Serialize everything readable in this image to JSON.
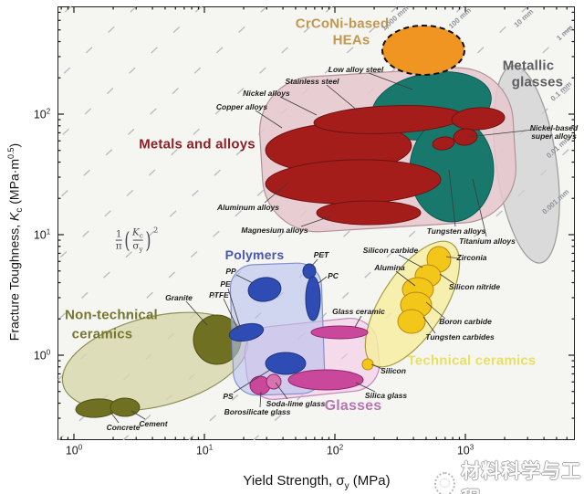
{
  "axes": {
    "x": {
      "title_pre": "Yield Strength, σ",
      "title_sub": "y",
      "title_post": " (MPa)",
      "ticks": [
        {
          "base": "10",
          "exp": "0"
        },
        {
          "base": "10",
          "exp": "1"
        },
        {
          "base": "10",
          "exp": "2"
        },
        {
          "base": "10",
          "exp": "3"
        }
      ]
    },
    "y": {
      "title_pre": "Fracture Toughness, ",
      "title_k": "K",
      "title_sub": "c",
      "title_mid": " (MPa·m",
      "title_sup": "0.5",
      "title_post": ")",
      "ticks": [
        {
          "base": "10",
          "exp": "2"
        },
        {
          "base": "10",
          "exp": "1"
        },
        {
          "base": "10",
          "exp": "0"
        }
      ]
    }
  },
  "formula": {
    "one": "1",
    "pi": "π",
    "K": "K",
    "Ksub": "c",
    "sigma": "σ",
    "sigmasub": "y",
    "exp": "2"
  },
  "labels": {
    "regions": {
      "metals": "Metals and alloys",
      "crconi1": "CrCoNi-based",
      "crconi2": "HEAs",
      "metallic1": "Metallic",
      "metallic2": "glasses",
      "polymers": "Polymers",
      "nontech1": "Non-technical",
      "nontech2": "ceramics",
      "technical": "Technical ceramics",
      "glasses": "Glasses"
    },
    "materials": {
      "low_alloy_steel": "Low alloy steel",
      "stainless_steel": "Stainless steel",
      "nickel_alloys": "Nickel alloys",
      "copper_alloys": "Copper alloys",
      "aluminum_alloys": "Aluminum alloys",
      "magnesium_alloys": "Magnesium alloys",
      "tungsten_alloys": "Tungsten alloys",
      "titanium_alloys": "Titanium alloys",
      "nickel_super_1": "Nickel-based",
      "nickel_super_2": "super alloys",
      "silicon_carbide": "Silicon carbide",
      "alumina": "Alumina",
      "zirconia": "Zirconia",
      "silicon_nitride": "Silicon nitride",
      "boron_carbide": "Boron carbide",
      "tungsten_carbides": "Tungsten carbides",
      "silicon": "Silicon",
      "glass_ceramic": "Glass ceramic",
      "silica_glass": "Silica glass",
      "soda_lime_glass": "Soda-lime glass",
      "borosilicate_glass": "Borosilicate glass",
      "ps": "PS",
      "pet": "PET",
      "pc": "PC",
      "pp": "PP",
      "pe": "PE",
      "ptfe": "PTFE",
      "granite": "Granite",
      "concrete": "Concrete",
      "cement": "Cement"
    },
    "guides": [
      "1,000 mm",
      "100 mm",
      "10 mm",
      "1 mm",
      "0.1 mm",
      "0.01 mm",
      "0.001 mm"
    ]
  },
  "watermark": {
    "text": "材料科学与工程"
  },
  "chart_data": {
    "type": "scatter",
    "variant": "ashby-material-property-map",
    "xlabel": "Yield Strength, σy (MPa)",
    "ylabel": "Fracture Toughness, Kc (MPa·m^0.5)",
    "xscale": "log",
    "yscale": "log",
    "xlim": [
      0.75,
      6900
    ],
    "ylim": [
      0.2,
      790
    ],
    "x_tick_values": [
      1,
      10,
      100,
      1000
    ],
    "y_tick_values": [
      1,
      10,
      100
    ],
    "grid": false,
    "guide_lines": {
      "formula": "(1/π)(Kc/σy)² = constant crack length",
      "labels_mm": [
        "1,000 mm",
        "100 mm",
        "10 mm",
        "1 mm",
        "0.1 mm",
        "0.01 mm",
        "0.001 mm"
      ]
    },
    "regions": [
      {
        "name": "CrCoNi-based HEAs",
        "color": "#f09522",
        "border": "dashed black",
        "sigma_y_MPa": [
          230,
          970
        ],
        "K_c": [
          220,
          540
        ],
        "members": [
          {
            "name": "CrCoNi-based HEAs",
            "sigma_y": 460,
            "K_c": 345
          }
        ]
      },
      {
        "name": "Metals and alloys",
        "color": "#e6c8ce",
        "sigma_y_MPa": [
          26,
          2500
        ],
        "K_c": [
          11,
          250
        ],
        "members": [
          {
            "name": "Low alloy steel",
            "sigma_y": 550,
            "K_c": 115
          },
          {
            "name": "Stainless steel",
            "sigma_y": 200,
            "K_c": 100
          },
          {
            "name": "Nickel alloys",
            "sigma_y": 75,
            "K_c": 95
          },
          {
            "name": "Copper alloys",
            "sigma_y": 105,
            "K_c": 50
          },
          {
            "name": "Aluminum alloys",
            "sigma_y": 140,
            "K_c": 27
          },
          {
            "name": "Magnesium alloys",
            "sigma_y": 180,
            "K_c": 15
          },
          {
            "name": "Tungsten alloys",
            "sigma_y": 760,
            "K_c": 28
          },
          {
            "name": "Titanium alloys",
            "sigma_y": 1000,
            "K_c": 38
          },
          {
            "name": "Nickel-based super alloys",
            "sigma_y": 1000,
            "K_c": 65
          }
        ]
      },
      {
        "name": "Metallic glasses",
        "color": "#d0d0d0",
        "sigma_y_MPa": [
          1700,
          5100
        ],
        "K_c": [
          6,
          250
        ],
        "members": []
      },
      {
        "name": "Polymers",
        "color": "#b7c2ec",
        "sigma_y_MPa": [
          16,
          83
        ],
        "K_c": [
          0.46,
          5.8
        ],
        "members": [
          {
            "name": "PET",
            "sigma_y": 64,
            "K_c": 5.0
          },
          {
            "name": "PC",
            "sigma_y": 68,
            "K_c": 2.9
          },
          {
            "name": "PP",
            "sigma_y": 29,
            "K_c": 3.5
          },
          {
            "name": "PE",
            "sigma_y": 21,
            "K_c": 1.6
          },
          {
            "name": "PTFE",
            "sigma_y": 19,
            "K_c": 1.4
          },
          {
            "name": "PS",
            "sigma_y": 41,
            "K_c": 0.9
          }
        ]
      },
      {
        "name": "Glasses",
        "color": "#f3c9e5",
        "sigma_y_MPa": [
          20,
          235
        ],
        "K_c": [
          0.47,
          2.15
        ],
        "members": [
          {
            "name": "Glass ceramic",
            "sigma_y": 110,
            "K_c": 1.6
          },
          {
            "name": "Soda-lime glass",
            "sigma_y": 35,
            "K_c": 0.7
          },
          {
            "name": "Borosilicate glass",
            "sigma_y": 27,
            "K_c": 0.6
          },
          {
            "name": "Silica glass",
            "sigma_y": 85,
            "K_c": 0.65
          }
        ]
      },
      {
        "name": "Technical ceramics",
        "color": "#f6eda1",
        "sigma_y_MPa": [
          170,
          780
        ],
        "K_c": [
          0.78,
          9
        ],
        "members": [
          {
            "name": "Zirconia",
            "sigma_y": 630,
            "K_c": 6.4
          },
          {
            "name": "Silicon nitride",
            "sigma_y": 525,
            "K_c": 4.7
          },
          {
            "name": "Alumina",
            "sigma_y": 440,
            "K_c": 3.6
          },
          {
            "name": "Boron carbide",
            "sigma_y": 425,
            "K_c": 2.6
          },
          {
            "name": "Tungsten carbides",
            "sigma_y": 390,
            "K_c": 1.9
          },
          {
            "name": "Silicon",
            "sigma_y": 180,
            "K_c": 0.9
          }
        ]
      },
      {
        "name": "Non-technical ceramics",
        "color": "#d8d7ab",
        "sigma_y_MPa": [
          0.9,
          22
        ],
        "K_c": [
          0.27,
          2.7
        ],
        "members": [
          {
            "name": "Granite",
            "sigma_y": 12.5,
            "K_c": 1.35
          },
          {
            "name": "Concrete",
            "sigma_y": 1.5,
            "K_c": 0.36
          },
          {
            "name": "Cement",
            "sigma_y": 2.5,
            "K_c": 0.37
          }
        ]
      }
    ]
  }
}
